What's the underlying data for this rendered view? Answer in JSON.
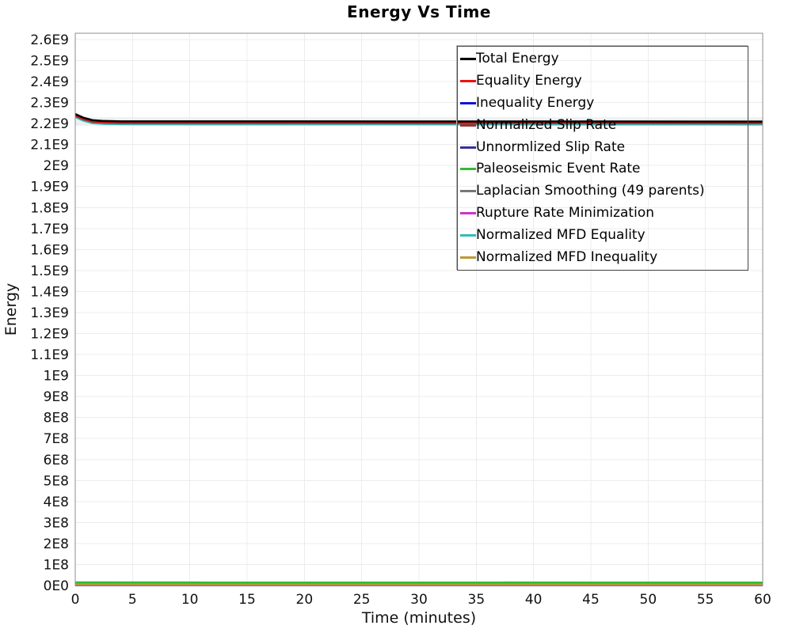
{
  "chart_data": {
    "type": "line",
    "title": "Energy Vs Time",
    "xlabel": "Time (minutes)",
    "ylabel": "Energy",
    "xlim": [
      0,
      60
    ],
    "ylim": [
      0,
      2630000000
    ],
    "grid": true,
    "legend_position": "top-right-inside",
    "legend_background": "transparent",
    "x_ticks": [
      0,
      5,
      10,
      15,
      20,
      25,
      30,
      35,
      40,
      45,
      50,
      55,
      60
    ],
    "x_tick_labels": [
      "0",
      "5",
      "10",
      "15",
      "20",
      "25",
      "30",
      "35",
      "40",
      "45",
      "50",
      "55",
      "60"
    ],
    "y_tick_step": 100000000,
    "y_tick_labels": [
      "0E0",
      "1E8",
      "2E8",
      "3E8",
      "4E8",
      "5E8",
      "6E8",
      "7E8",
      "8E8",
      "9E8",
      "1E9",
      "1.1E9",
      "1.2E9",
      "1.3E9",
      "1.4E9",
      "1.5E9",
      "1.6E9",
      "1.7E9",
      "1.8E9",
      "1.9E9",
      "2E9",
      "2.1E9",
      "2.2E9",
      "2.3E9",
      "2.4E9",
      "2.5E9",
      "2.6E9"
    ],
    "series": [
      {
        "name": "Total Energy",
        "color": "#000000",
        "width": 2.5,
        "x": [
          0,
          0.7,
          1.5,
          2.5,
          4,
          60
        ],
        "y": [
          2245000000.0,
          2228000000.0,
          2216000000.0,
          2212000000.0,
          2210500000.0,
          2209500000.0
        ]
      },
      {
        "name": "Equality Energy",
        "color": "#ee1111",
        "width": 2.5,
        "x": [
          0,
          0.7,
          1.5,
          2.5,
          4,
          60
        ],
        "y": [
          2241000000.0,
          2224000000.0,
          2212000000.0,
          2208000000.0,
          2206500000.0,
          2205500000.0
        ]
      },
      {
        "name": "Inequality Energy",
        "color": "#1111dd",
        "width": 2,
        "x": [
          0,
          60
        ],
        "y": [
          1000000.0,
          1000000.0
        ]
      },
      {
        "name": "Normalized Slip Rate",
        "color": "#993333",
        "width": 2.5,
        "x": [
          0,
          0.7,
          1.5,
          2.5,
          4,
          60
        ],
        "y": [
          2237000000.0,
          2220000000.0,
          2208000000.0,
          2204000000.0,
          2202500000.0,
          2201500000.0
        ]
      },
      {
        "name": "Unnormlized Slip Rate",
        "color": "#333399",
        "width": 2,
        "x": [
          0,
          60
        ],
        "y": [
          1000000.0,
          1000000.0
        ]
      },
      {
        "name": "Paleoseismic Event Rate",
        "color": "#33bb33",
        "width": 2.5,
        "x": [
          0,
          60
        ],
        "y": [
          15000000.0,
          14000000.0
        ]
      },
      {
        "name": "Laplacian Smoothing (49 parents)",
        "color": "#777777",
        "width": 2,
        "x": [
          0,
          60
        ],
        "y": [
          2000000.0,
          2000000.0
        ]
      },
      {
        "name": "Rupture Rate Minimization",
        "color": "#cc33cc",
        "width": 2,
        "x": [
          0,
          60
        ],
        "y": [
          1000000.0,
          1000000.0
        ]
      },
      {
        "name": "Normalized MFD Equality",
        "color": "#33bbbb",
        "width": 2.5,
        "x": [
          0,
          0.7,
          1.5,
          2.5,
          4,
          60
        ],
        "y": [
          2231000000.0,
          2214000000.0,
          2202000000.0,
          2198000000.0,
          2196500000.0,
          2195500000.0
        ]
      },
      {
        "name": "Normalized MFD Inequality",
        "color": "#bb9933",
        "width": 2.5,
        "x": [
          0,
          60
        ],
        "y": [
          7000000.0,
          6000000.0
        ]
      }
    ],
    "draw_order": [
      4,
      2,
      7,
      6,
      9,
      5,
      8,
      3,
      1,
      0
    ],
    "colors": {
      "grid": "#ececec",
      "axis_border": "#8c8c8c",
      "tick_label": "#111111",
      "halo_band": "#dfe9e9"
    }
  }
}
